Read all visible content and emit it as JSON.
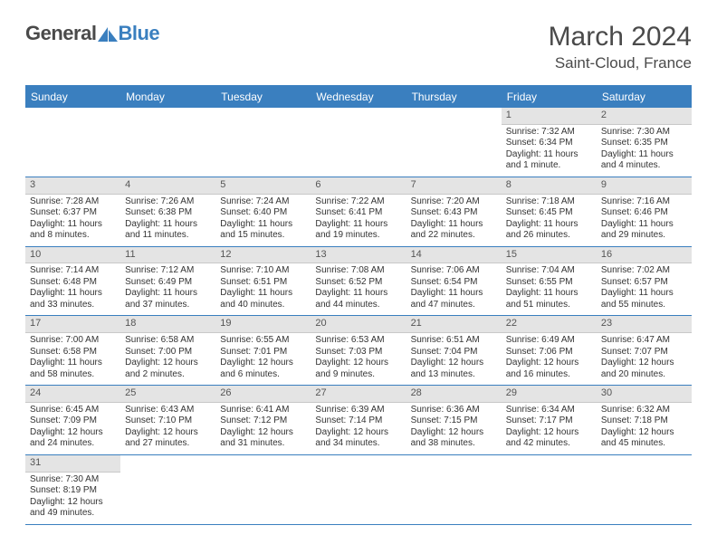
{
  "logo": {
    "text1": "General",
    "text2": "Blue",
    "shape_color": "#3a7fbf"
  },
  "title": "March 2024",
  "location": "Saint-Cloud, France",
  "colors": {
    "header_bg": "#3a7fbf",
    "header_text": "#ffffff",
    "daynum_bg": "#e4e4e4",
    "border": "#3a7fbf",
    "text": "#333333"
  },
  "day_headers": [
    "Sunday",
    "Monday",
    "Tuesday",
    "Wednesday",
    "Thursday",
    "Friday",
    "Saturday"
  ],
  "weeks": [
    [
      {
        "blank": true
      },
      {
        "blank": true
      },
      {
        "blank": true
      },
      {
        "blank": true
      },
      {
        "blank": true
      },
      {
        "day": "1",
        "sunrise": "Sunrise: 7:32 AM",
        "sunset": "Sunset: 6:34 PM",
        "daylight": "Daylight: 11 hours and 1 minute."
      },
      {
        "day": "2",
        "sunrise": "Sunrise: 7:30 AM",
        "sunset": "Sunset: 6:35 PM",
        "daylight": "Daylight: 11 hours and 4 minutes."
      }
    ],
    [
      {
        "day": "3",
        "sunrise": "Sunrise: 7:28 AM",
        "sunset": "Sunset: 6:37 PM",
        "daylight": "Daylight: 11 hours and 8 minutes."
      },
      {
        "day": "4",
        "sunrise": "Sunrise: 7:26 AM",
        "sunset": "Sunset: 6:38 PM",
        "daylight": "Daylight: 11 hours and 11 minutes."
      },
      {
        "day": "5",
        "sunrise": "Sunrise: 7:24 AM",
        "sunset": "Sunset: 6:40 PM",
        "daylight": "Daylight: 11 hours and 15 minutes."
      },
      {
        "day": "6",
        "sunrise": "Sunrise: 7:22 AM",
        "sunset": "Sunset: 6:41 PM",
        "daylight": "Daylight: 11 hours and 19 minutes."
      },
      {
        "day": "7",
        "sunrise": "Sunrise: 7:20 AM",
        "sunset": "Sunset: 6:43 PM",
        "daylight": "Daylight: 11 hours and 22 minutes."
      },
      {
        "day": "8",
        "sunrise": "Sunrise: 7:18 AM",
        "sunset": "Sunset: 6:45 PM",
        "daylight": "Daylight: 11 hours and 26 minutes."
      },
      {
        "day": "9",
        "sunrise": "Sunrise: 7:16 AM",
        "sunset": "Sunset: 6:46 PM",
        "daylight": "Daylight: 11 hours and 29 minutes."
      }
    ],
    [
      {
        "day": "10",
        "sunrise": "Sunrise: 7:14 AM",
        "sunset": "Sunset: 6:48 PM",
        "daylight": "Daylight: 11 hours and 33 minutes."
      },
      {
        "day": "11",
        "sunrise": "Sunrise: 7:12 AM",
        "sunset": "Sunset: 6:49 PM",
        "daylight": "Daylight: 11 hours and 37 minutes."
      },
      {
        "day": "12",
        "sunrise": "Sunrise: 7:10 AM",
        "sunset": "Sunset: 6:51 PM",
        "daylight": "Daylight: 11 hours and 40 minutes."
      },
      {
        "day": "13",
        "sunrise": "Sunrise: 7:08 AM",
        "sunset": "Sunset: 6:52 PM",
        "daylight": "Daylight: 11 hours and 44 minutes."
      },
      {
        "day": "14",
        "sunrise": "Sunrise: 7:06 AM",
        "sunset": "Sunset: 6:54 PM",
        "daylight": "Daylight: 11 hours and 47 minutes."
      },
      {
        "day": "15",
        "sunrise": "Sunrise: 7:04 AM",
        "sunset": "Sunset: 6:55 PM",
        "daylight": "Daylight: 11 hours and 51 minutes."
      },
      {
        "day": "16",
        "sunrise": "Sunrise: 7:02 AM",
        "sunset": "Sunset: 6:57 PM",
        "daylight": "Daylight: 11 hours and 55 minutes."
      }
    ],
    [
      {
        "day": "17",
        "sunrise": "Sunrise: 7:00 AM",
        "sunset": "Sunset: 6:58 PM",
        "daylight": "Daylight: 11 hours and 58 minutes."
      },
      {
        "day": "18",
        "sunrise": "Sunrise: 6:58 AM",
        "sunset": "Sunset: 7:00 PM",
        "daylight": "Daylight: 12 hours and 2 minutes."
      },
      {
        "day": "19",
        "sunrise": "Sunrise: 6:55 AM",
        "sunset": "Sunset: 7:01 PM",
        "daylight": "Daylight: 12 hours and 6 minutes."
      },
      {
        "day": "20",
        "sunrise": "Sunrise: 6:53 AM",
        "sunset": "Sunset: 7:03 PM",
        "daylight": "Daylight: 12 hours and 9 minutes."
      },
      {
        "day": "21",
        "sunrise": "Sunrise: 6:51 AM",
        "sunset": "Sunset: 7:04 PM",
        "daylight": "Daylight: 12 hours and 13 minutes."
      },
      {
        "day": "22",
        "sunrise": "Sunrise: 6:49 AM",
        "sunset": "Sunset: 7:06 PM",
        "daylight": "Daylight: 12 hours and 16 minutes."
      },
      {
        "day": "23",
        "sunrise": "Sunrise: 6:47 AM",
        "sunset": "Sunset: 7:07 PM",
        "daylight": "Daylight: 12 hours and 20 minutes."
      }
    ],
    [
      {
        "day": "24",
        "sunrise": "Sunrise: 6:45 AM",
        "sunset": "Sunset: 7:09 PM",
        "daylight": "Daylight: 12 hours and 24 minutes."
      },
      {
        "day": "25",
        "sunrise": "Sunrise: 6:43 AM",
        "sunset": "Sunset: 7:10 PM",
        "daylight": "Daylight: 12 hours and 27 minutes."
      },
      {
        "day": "26",
        "sunrise": "Sunrise: 6:41 AM",
        "sunset": "Sunset: 7:12 PM",
        "daylight": "Daylight: 12 hours and 31 minutes."
      },
      {
        "day": "27",
        "sunrise": "Sunrise: 6:39 AM",
        "sunset": "Sunset: 7:14 PM",
        "daylight": "Daylight: 12 hours and 34 minutes."
      },
      {
        "day": "28",
        "sunrise": "Sunrise: 6:36 AM",
        "sunset": "Sunset: 7:15 PM",
        "daylight": "Daylight: 12 hours and 38 minutes."
      },
      {
        "day": "29",
        "sunrise": "Sunrise: 6:34 AM",
        "sunset": "Sunset: 7:17 PM",
        "daylight": "Daylight: 12 hours and 42 minutes."
      },
      {
        "day": "30",
        "sunrise": "Sunrise: 6:32 AM",
        "sunset": "Sunset: 7:18 PM",
        "daylight": "Daylight: 12 hours and 45 minutes."
      }
    ],
    [
      {
        "day": "31",
        "sunrise": "Sunrise: 7:30 AM",
        "sunset": "Sunset: 8:19 PM",
        "daylight": "Daylight: 12 hours and 49 minutes."
      },
      {
        "blank": true
      },
      {
        "blank": true
      },
      {
        "blank": true
      },
      {
        "blank": true
      },
      {
        "blank": true
      },
      {
        "blank": true
      }
    ]
  ]
}
